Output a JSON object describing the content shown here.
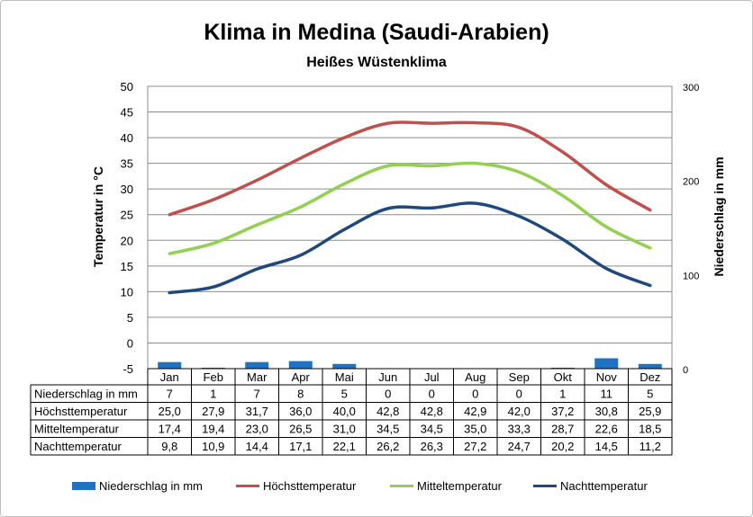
{
  "title": "Klima in Medina (Saudi-Arabien)",
  "subtitle": "Heißes Wüstenklima",
  "colors": {
    "precipitation": "#1f72c1",
    "high": "#c0504d",
    "mean": "#92d050",
    "low": "#1f497d"
  },
  "chart_data": {
    "type": "line",
    "title": "Klima in Medina (Saudi-Arabien)",
    "subtitle": "Heißes Wüstenklima",
    "categories": [
      "Jan",
      "Feb",
      "Mar",
      "Apr",
      "Mai",
      "Jun",
      "Jul",
      "Aug",
      "Sep",
      "Okt",
      "Nov",
      "Dez"
    ],
    "ylabel": "Temperatur in °C",
    "ylabel_right": "Niederschlag in mm",
    "ylim": [
      -5,
      50
    ],
    "yticks": [
      "50",
      "45",
      "40",
      "35",
      "30",
      "25",
      "20",
      "15",
      "10",
      "5",
      "0",
      "-5"
    ],
    "ylim_right": [
      0,
      300
    ],
    "yticks_right": [
      "300",
      "200",
      "100",
      "0"
    ],
    "grid": true,
    "legend_position": "bottom",
    "series": [
      {
        "name": "Niederschlag in mm",
        "type": "bar",
        "axis": "right",
        "values": [
          7,
          1,
          7,
          8,
          5,
          0,
          0,
          0,
          0,
          1,
          11,
          5
        ],
        "labels": [
          "7",
          "1",
          "7",
          "8",
          "5",
          "0",
          "0",
          "0",
          "0",
          "1",
          "11",
          "5"
        ]
      },
      {
        "name": "Höchsttemperatur",
        "type": "line",
        "axis": "left",
        "values": [
          25.0,
          27.9,
          31.7,
          36.0,
          40.0,
          42.8,
          42.8,
          42.9,
          42.0,
          37.2,
          30.8,
          25.9
        ],
        "labels": [
          "25,0",
          "27,9",
          "31,7",
          "36,0",
          "40,0",
          "42,8",
          "42,8",
          "42,9",
          "42,0",
          "37,2",
          "30,8",
          "25,9"
        ]
      },
      {
        "name": "Mitteltemperatur",
        "type": "line",
        "axis": "left",
        "values": [
          17.4,
          19.4,
          23.0,
          26.5,
          31.0,
          34.5,
          34.5,
          35.0,
          33.3,
          28.7,
          22.6,
          18.5
        ],
        "labels": [
          "17,4",
          "19,4",
          "23,0",
          "26,5",
          "31,0",
          "34,5",
          "34,5",
          "35,0",
          "33,3",
          "28,7",
          "22,6",
          "18,5"
        ]
      },
      {
        "name": "Nachttemperatur",
        "type": "line",
        "axis": "left",
        "values": [
          9.8,
          10.9,
          14.4,
          17.1,
          22.1,
          26.2,
          26.3,
          27.2,
          24.7,
          20.2,
          14.5,
          11.2
        ],
        "labels": [
          "9,8",
          "10,9",
          "14,4",
          "17,1",
          "22,1",
          "26,2",
          "26,3",
          "27,2",
          "24,7",
          "20,2",
          "14,5",
          "11,2"
        ]
      }
    ]
  }
}
